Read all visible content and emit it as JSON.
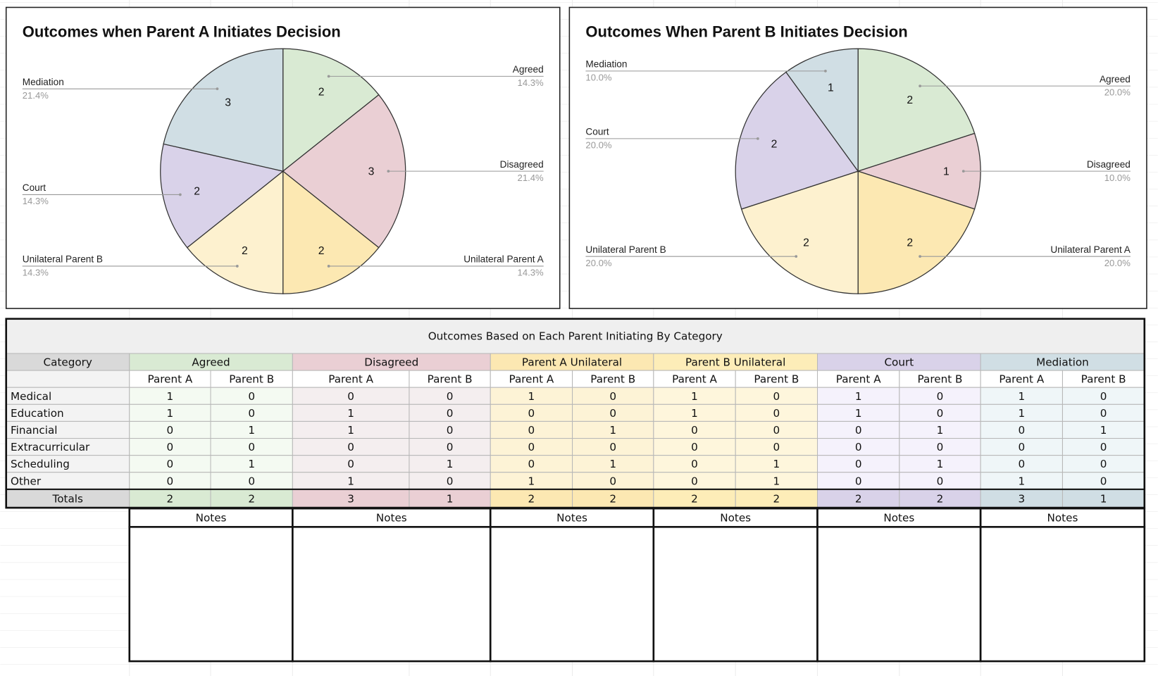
{
  "chart_data": [
    {
      "type": "pie",
      "title": "Outcomes when Parent A Initiates Decision",
      "categories": [
        "Agreed",
        "Disagreed",
        "Unilateral Parent A",
        "Unilateral Parent B",
        "Court",
        "Mediation"
      ],
      "values": [
        2,
        3,
        2,
        2,
        2,
        3
      ],
      "percents": [
        {
          "value": 14.3,
          "label": "14.3%"
        },
        {
          "value": 21.4,
          "label": "21.4%"
        },
        {
          "value": 14.3,
          "label": "14.3%"
        },
        {
          "value": 14.3,
          "label": "14.3%"
        },
        {
          "value": 14.3,
          "label": "14.3%"
        },
        {
          "value": 21.4,
          "label": "21.4%"
        }
      ],
      "colors": [
        "#d9ead3",
        "#eacfd4",
        "#fce8b2",
        "#fdf1cf",
        "#d9d2e9",
        "#d0dee4"
      ]
    },
    {
      "type": "pie",
      "title": "Outcomes When Parent B Initiates Decision",
      "categories": [
        "Agreed",
        "Disagreed",
        "Unilateral Parent A",
        "Unilateral Parent B",
        "Court",
        "Mediation"
      ],
      "values": [
        2,
        1,
        2,
        2,
        2,
        1
      ],
      "percents": [
        {
          "value": 20.0,
          "label": "20.0%"
        },
        {
          "value": 10.0,
          "label": "10.0%"
        },
        {
          "value": 20.0,
          "label": "20.0%"
        },
        {
          "value": 20.0,
          "label": "20.0%"
        },
        {
          "value": 20.0,
          "label": "20.0%"
        },
        {
          "value": 10.0,
          "label": "10.0%"
        }
      ],
      "colors": [
        "#d9ead3",
        "#eacfd4",
        "#fce8b2",
        "#fdf1cf",
        "#d9d2e9",
        "#d0dee4"
      ]
    }
  ],
  "table": {
    "title": "Outcomes Based on Each Parent Initiating By Category",
    "headers": [
      "Category",
      "Agreed",
      "Disagreed",
      "Parent A Unilateral",
      "Parent B Unilateral",
      "Court",
      "Mediation"
    ],
    "subheaders": [
      "Parent A",
      "Parent B",
      "Parent A",
      "Parent B",
      "Parent A",
      "Parent B",
      "Parent A",
      "Parent B",
      "Parent A",
      "Parent B",
      "Parent A",
      "Parent B"
    ],
    "rows": [
      [
        "Medical",
        1,
        0,
        0,
        0,
        1,
        0,
        1,
        0,
        1,
        0,
        1,
        0
      ],
      [
        "Education",
        1,
        0,
        1,
        0,
        0,
        0,
        1,
        0,
        1,
        0,
        1,
        0
      ],
      [
        "Financial",
        0,
        1,
        1,
        0,
        0,
        1,
        0,
        0,
        0,
        1,
        0,
        1
      ],
      [
        "Extracurricular",
        0,
        0,
        0,
        0,
        0,
        0,
        0,
        0,
        0,
        0,
        0,
        0
      ],
      [
        "Scheduling",
        0,
        1,
        0,
        1,
        0,
        1,
        0,
        1,
        0,
        1,
        0,
        0
      ],
      [
        "Other",
        0,
        0,
        1,
        0,
        1,
        0,
        0,
        1,
        0,
        0,
        1,
        0
      ]
    ],
    "totals_label": "Totals",
    "totals": [
      2,
      2,
      3,
      1,
      2,
      2,
      2,
      2,
      2,
      2,
      3,
      1
    ],
    "notes": [
      "Notes",
      "Notes",
      "Notes",
      "Notes",
      "Notes",
      "Notes"
    ]
  }
}
